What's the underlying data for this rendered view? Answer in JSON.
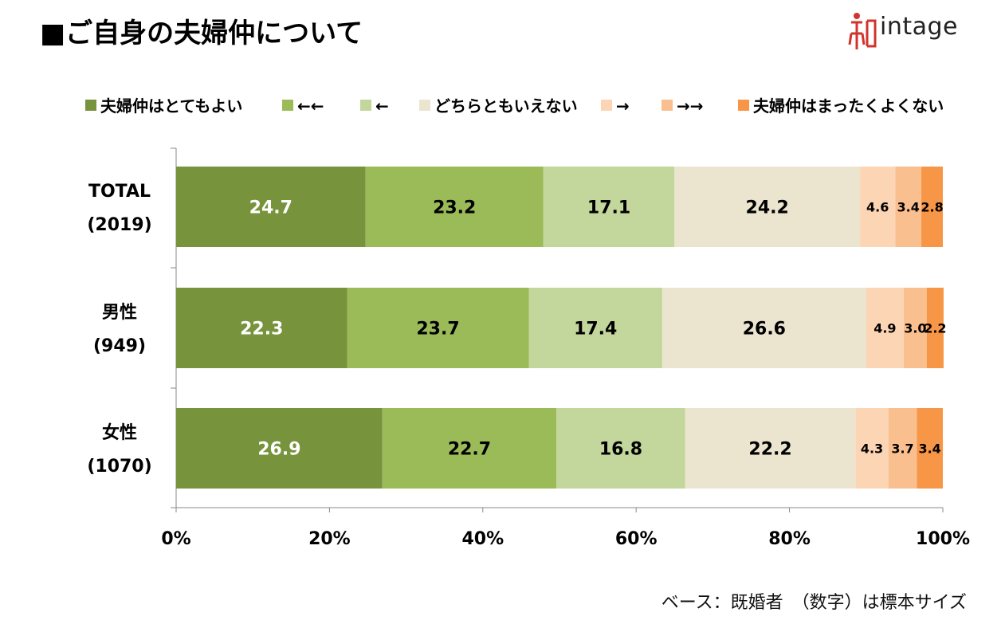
{
  "title": "■ご自身の夫婦仲について",
  "logo": {
    "text": "intage",
    "icon": "intage-logo-icon",
    "color": "#d0342c"
  },
  "footnote": "ベース：既婚者　（数字）は標本サイズ",
  "chart_data": {
    "type": "bar",
    "orientation": "horizontal",
    "stacked": true,
    "legend_position": "top",
    "categories": [
      {
        "name": "TOTAL",
        "n": "(2019)"
      },
      {
        "name": "男性",
        "n": "(949)"
      },
      {
        "name": "女性",
        "n": "(1070)"
      }
    ],
    "series": [
      {
        "name": "夫婦仲はとてもよい",
        "color": "#77933c",
        "label_color": "#ffffff",
        "values": [
          24.7,
          22.3,
          26.9
        ]
      },
      {
        "name": "←←",
        "color": "#9bbb59",
        "label_color": "#000000",
        "values": [
          23.2,
          23.7,
          22.7
        ]
      },
      {
        "name": "←",
        "color": "#c3d69b",
        "label_color": "#000000",
        "values": [
          17.1,
          17.4,
          16.8
        ]
      },
      {
        "name": "どちらともいえない",
        "color": "#ebe5cf",
        "label_color": "#000000",
        "values": [
          24.2,
          26.6,
          22.2
        ]
      },
      {
        "name": "→",
        "color": "#fcd5b5",
        "label_color": "#000000",
        "values": [
          4.6,
          4.9,
          4.3
        ]
      },
      {
        "name": "→→",
        "color": "#fabf8f",
        "label_color": "#000000",
        "values": [
          3.4,
          3.0,
          3.7
        ]
      },
      {
        "name": "夫婦仲はまったくよくない",
        "color": "#f79646",
        "label_color": "#000000",
        "values": [
          2.8,
          2.2,
          3.4
        ]
      }
    ],
    "xlim": [
      0,
      100
    ],
    "xticks": [
      "0%",
      "20%",
      "40%",
      "60%",
      "80%",
      "100%"
    ],
    "grid": false
  }
}
